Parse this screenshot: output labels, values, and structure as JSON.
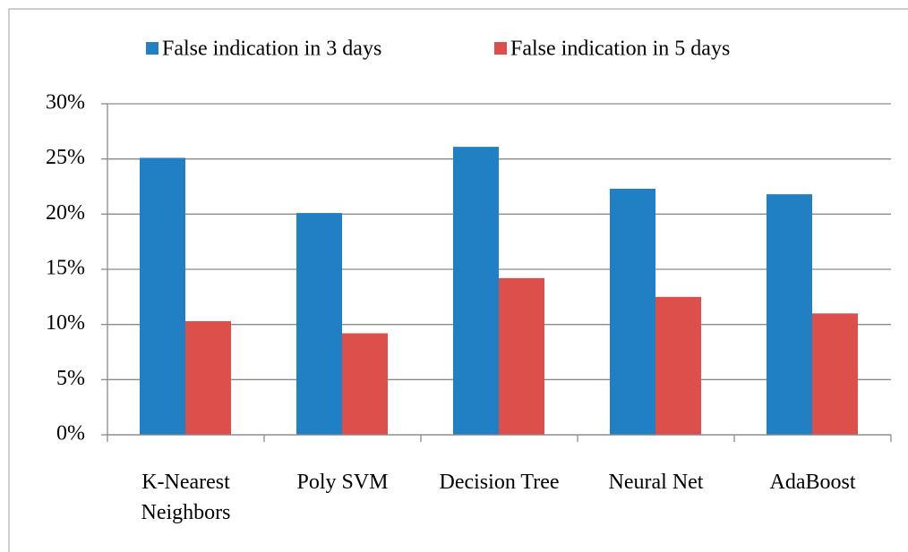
{
  "chart_data": {
    "type": "bar",
    "categories": [
      "K-Nearest Neighbors",
      "Poly SVM",
      "Decision Tree",
      "Neural Net",
      "AdaBoost"
    ],
    "series": [
      {
        "name": "False indication in 3 days",
        "color": "#2180c4",
        "values": [
          25.1,
          20.1,
          26.1,
          22.3,
          21.8
        ]
      },
      {
        "name": "False indication in 5 days",
        "color": "#dc4f4b",
        "values": [
          10.3,
          9.2,
          14.2,
          12.5,
          11.0
        ]
      }
    ],
    "ylim": [
      0,
      30
    ],
    "yticks": [
      {
        "value": 0,
        "label": "0%"
      },
      {
        "value": 5,
        "label": "5%"
      },
      {
        "value": 10,
        "label": "10%"
      },
      {
        "value": 15,
        "label": "15%"
      },
      {
        "value": 20,
        "label": "20%"
      },
      {
        "value": 25,
        "label": "25%"
      },
      {
        "value": 30,
        "label": "30%"
      }
    ],
    "grid": true,
    "legend": "top"
  }
}
